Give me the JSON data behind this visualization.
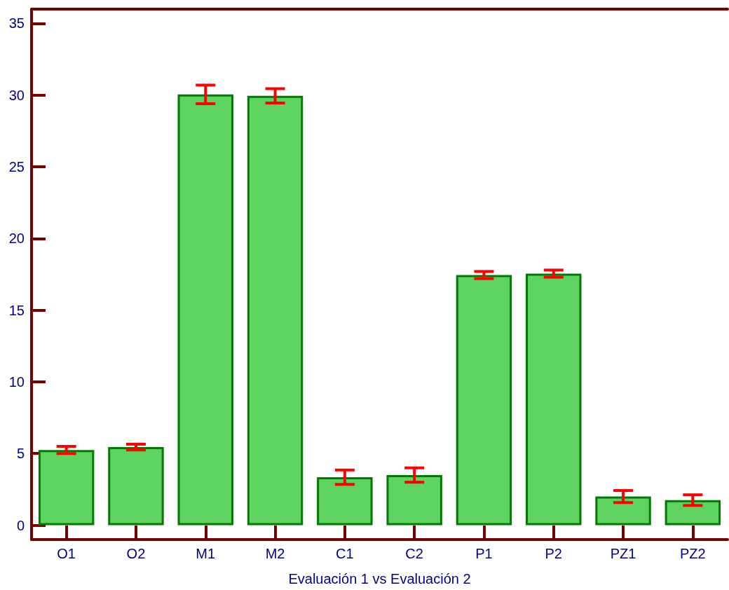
{
  "chart_data": {
    "type": "bar",
    "xlabel": "Evaluación 1 vs Evaluación 2",
    "categories": [
      "O1",
      "O2",
      "M1",
      "M2",
      "C1",
      "C2",
      "P1",
      "P2",
      "PZ1",
      "PZ2"
    ],
    "values": [
      5.25,
      5.45,
      30.05,
      29.95,
      3.35,
      3.5,
      17.45,
      17.55,
      2.0,
      1.75
    ],
    "errors": [
      0.25,
      0.2,
      0.65,
      0.5,
      0.5,
      0.5,
      0.25,
      0.25,
      0.42,
      0.37
    ],
    "color": "#5fd35f",
    "ylim": [
      -1,
      36
    ],
    "yticks": [
      0,
      5,
      10,
      15,
      20,
      25,
      30,
      35
    ],
    "grid": false
  }
}
